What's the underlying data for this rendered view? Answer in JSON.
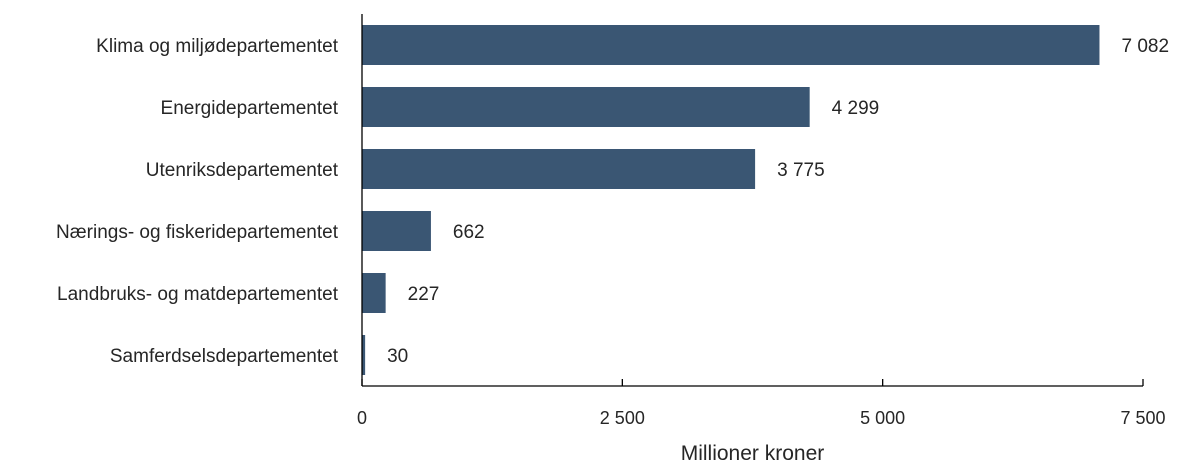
{
  "colors": {
    "bar": "#3a5673",
    "axis": "#000000",
    "text": "#262626"
  },
  "chart_data": {
    "type": "bar",
    "orientation": "horizontal",
    "categories": [
      "Klima og miljødepartementet",
      "Energidepartementet",
      "Utenriksdepartementet",
      "Nærings- og fiskeridepartementet",
      "Landbruks- og matdepartementet",
      "Samferdselsdepartementet"
    ],
    "values": [
      7082,
      4299,
      3775,
      662,
      227,
      30
    ],
    "value_labels": [
      "7 082",
      "4 299",
      "3 775",
      "662",
      "227",
      "30"
    ],
    "xlabel": "Millioner kroner",
    "xlim": [
      0,
      7500
    ],
    "x_ticks": [
      0,
      2500,
      5000,
      7500
    ],
    "x_tick_labels": [
      "0",
      "2 500",
      "5 000",
      "7 500"
    ],
    "grid": false,
    "legend": "none"
  }
}
